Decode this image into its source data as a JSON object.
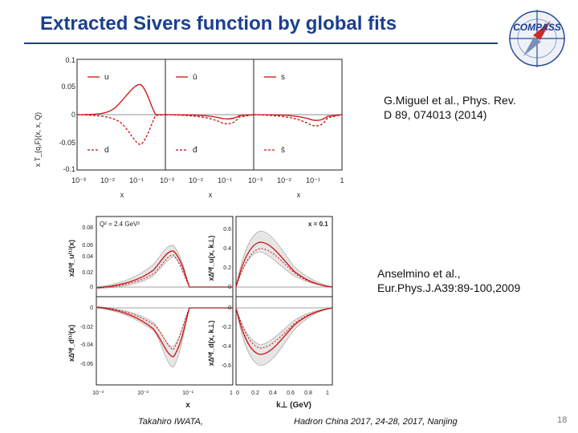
{
  "slide": {
    "title": "Extracted Sivers function by global fits",
    "page_number": "18"
  },
  "logo": {
    "text": "COMPASS"
  },
  "figure1": {
    "ylabel": "x T_{q,F}(x, x, Q)",
    "xlabel": "x",
    "y_ticks": [
      "0.1",
      "0.05",
      "0",
      "-0.05",
      "-0.1"
    ],
    "x_ticks": [
      "10⁻³",
      "10⁻²",
      "10⁻¹",
      "1"
    ],
    "panel_labels": [
      [
        "u",
        "d"
      ],
      [
        "ū",
        "đ"
      ],
      [
        "s",
        "s̄"
      ]
    ]
  },
  "caption1": {
    "line1": "G.Miguel et al., Phys. Rev.",
    "line2": "D 89, 074013 (2014)"
  },
  "figure2": {
    "q2_label": "Q² = 2.4 GeV²",
    "x_label": "x = 0.1",
    "ylabel_top_left": "x∆ᴺf_u⁽¹⁾(x)",
    "ylabel_bottom_left": "x∆ᴺf_d⁽¹⁾(x)",
    "ylabel_top_right": "x∆ᴺf_u(x, k⊥)",
    "ylabel_bottom_right": "x∆ᴺf_d(x, k⊥)",
    "left_top_ticks": [
      "0.08",
      "0.06",
      "0.04",
      "0.02",
      "0"
    ],
    "left_bottom_ticks": [
      "0",
      "-0.02",
      "-0.04",
      "-0.06"
    ],
    "right_top_ticks": [
      "0.6",
      "0.4",
      "0.2",
      "0"
    ],
    "right_bottom_ticks": [
      "0",
      "-0.2",
      "-0.4",
      "-0.6"
    ],
    "left_x_ticks": [
      "10⁻³",
      "10⁻²",
      "10⁻¹",
      "1"
    ],
    "right_x_ticks": [
      "0",
      "0.2",
      "0.4",
      "0.6",
      "0.8",
      "1"
    ],
    "left_xlabel": "x",
    "right_xlabel": "k⊥ (GeV)"
  },
  "caption2": {
    "line1": "Anselmino et al.,",
    "line2": "Eur.Phys.J.A39:89-100,2009"
  },
  "footer": {
    "author": "Takahiro IWATA,",
    "conference": "Hadron China 2017, 24-28, 2017, Nanjing"
  },
  "colors": {
    "title": "#1a3f8f",
    "curve": "#cc1111",
    "band": "#e6e6e6"
  }
}
